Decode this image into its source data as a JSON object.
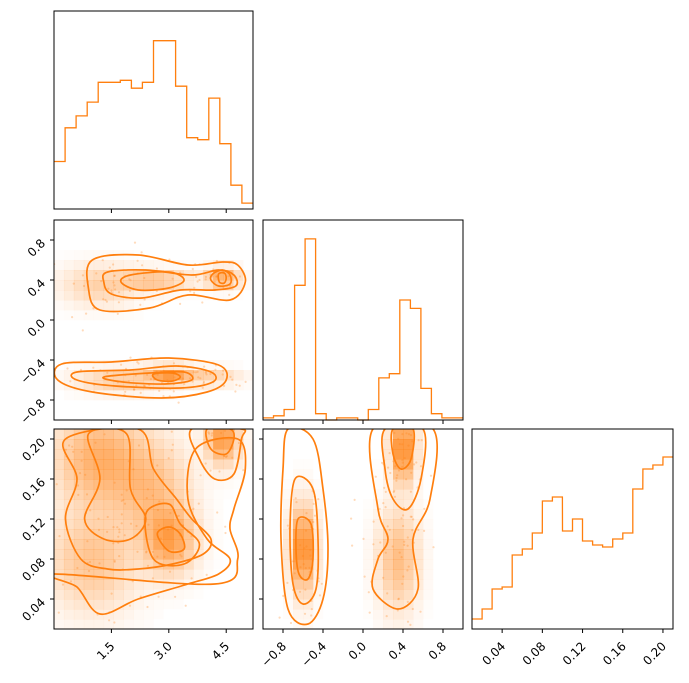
{
  "chart_data": {
    "type": "corner",
    "color": "#ff7f0e",
    "parameters": [
      {
        "range": [
          0,
          5.2
        ],
        "ticks": [
          1.5,
          3.0,
          4.5
        ],
        "tick_labels": [
          "1.5",
          "3.0",
          "4.5"
        ]
      },
      {
        "range": [
          -1.0,
          1.0
        ],
        "ticks": [
          -0.8,
          -0.4,
          0.0,
          0.4,
          0.8
        ],
        "tick_labels": [
          "−0.8",
          "−0.4",
          "0.0",
          "0.4",
          "0.8"
        ]
      },
      {
        "range": [
          0.01,
          0.21
        ],
        "ticks": [
          0.04,
          0.08,
          0.12,
          0.16,
          0.2
        ],
        "tick_labels": [
          "0.04",
          "0.08",
          "0.12",
          "0.16",
          "0.20"
        ]
      }
    ],
    "histograms": [
      {
        "param": 0,
        "ymax": 1.0,
        "counts": [
          0.24,
          0.41,
          0.47,
          0.54,
          0.64,
          0.64,
          0.65,
          0.61,
          0.64,
          0.85,
          0.85,
          0.62,
          0.36,
          0.35,
          0.56,
          0.33,
          0.12,
          0.03
        ]
      },
      {
        "param": 1,
        "ymax": 0.95,
        "counts": [
          0.01,
          0.02,
          0.05,
          0.64,
          0.86,
          0.03,
          0.0,
          0.01,
          0.01,
          0.0,
          0.05,
          0.2,
          0.22,
          0.57,
          0.53,
          0.15,
          0.03,
          0.01,
          0.01
        ]
      },
      {
        "param": 2,
        "ymax": 1.0,
        "counts": [
          0.05,
          0.1,
          0.2,
          0.21,
          0.37,
          0.4,
          0.48,
          0.64,
          0.66,
          0.49,
          0.55,
          0.44,
          0.42,
          0.41,
          0.45,
          0.48,
          0.7,
          0.8,
          0.82,
          0.86
        ]
      }
    ],
    "pairs": [
      {
        "x_param": 0,
        "y_param": 1,
        "blobs": [
          {
            "x": 2.6,
            "y": 0.4,
            "sx": 0.55,
            "sy": 0.06,
            "w": 0.6
          },
          {
            "x": 4.4,
            "y": 0.42,
            "sx": 0.25,
            "sy": 0.06,
            "w": 0.9
          },
          {
            "x": 1.2,
            "y": 0.35,
            "sx": 0.6,
            "sy": 0.12,
            "w": 0.35
          },
          {
            "x": 3.0,
            "y": -0.55,
            "sx": 0.35,
            "sy": 0.05,
            "w": 1.0
          },
          {
            "x": 1.8,
            "y": -0.6,
            "sx": 0.7,
            "sy": 0.07,
            "w": 0.45
          },
          {
            "x": 4.0,
            "y": -0.57,
            "sx": 0.5,
            "sy": 0.05,
            "w": 0.35
          }
        ],
        "contours": [
          {
            "level": 3,
            "points": [
              [
                1.0,
                0.6
              ],
              [
                2.2,
                0.65
              ],
              [
                3.5,
                0.55
              ],
              [
                4.4,
                0.58
              ],
              [
                4.8,
                0.55
              ],
              [
                5.0,
                0.38
              ],
              [
                4.6,
                0.2
              ],
              [
                3.5,
                0.25
              ],
              [
                2.5,
                0.12
              ],
              [
                1.2,
                0.1
              ],
              [
                0.9,
                0.32
              ]
            ]
          },
          {
            "level": 2,
            "points": [
              [
                1.4,
                0.48
              ],
              [
                2.4,
                0.5
              ],
              [
                3.6,
                0.45
              ],
              [
                4.3,
                0.5
              ],
              [
                4.7,
                0.45
              ],
              [
                4.75,
                0.34
              ],
              [
                4.2,
                0.3
              ],
              [
                3.3,
                0.3
              ],
              [
                2.3,
                0.22
              ],
              [
                1.5,
                0.26
              ],
              [
                1.3,
                0.38
              ]
            ]
          },
          {
            "level": 1,
            "points": [
              [
                2.0,
                0.45
              ],
              [
                3.0,
                0.48
              ],
              [
                3.4,
                0.4
              ],
              [
                3.0,
                0.32
              ],
              [
                2.2,
                0.3
              ],
              [
                1.75,
                0.38
              ]
            ]
          },
          {
            "level": 1,
            "points": [
              [
                4.15,
                0.46
              ],
              [
                4.4,
                0.5
              ],
              [
                4.6,
                0.45
              ],
              [
                4.6,
                0.36
              ],
              [
                4.3,
                0.34
              ],
              [
                4.1,
                0.4
              ]
            ]
          },
          {
            "level": 0,
            "points": [
              [
                4.3,
                0.46
              ],
              [
                4.45,
                0.47
              ],
              [
                4.5,
                0.42
              ],
              [
                4.45,
                0.37
              ],
              [
                4.32,
                0.38
              ]
            ]
          },
          {
            "level": 3,
            "points": [
              [
                0.2,
                -0.44
              ],
              [
                1.5,
                -0.42
              ],
              [
                3.0,
                -0.38
              ],
              [
                4.3,
                -0.45
              ],
              [
                4.5,
                -0.6
              ],
              [
                4.0,
                -0.72
              ],
              [
                2.8,
                -0.78
              ],
              [
                1.0,
                -0.72
              ],
              [
                0.1,
                -0.6
              ]
            ]
          },
          {
            "level": 2,
            "points": [
              [
                0.6,
                -0.52
              ],
              [
                2.0,
                -0.5
              ],
              [
                3.2,
                -0.46
              ],
              [
                4.1,
                -0.52
              ],
              [
                4.15,
                -0.62
              ],
              [
                3.3,
                -0.68
              ],
              [
                1.6,
                -0.66
              ],
              [
                0.6,
                -0.6
              ]
            ]
          },
          {
            "level": 1,
            "points": [
              [
                1.3,
                -0.57
              ],
              [
                2.5,
                -0.53
              ],
              [
                3.4,
                -0.52
              ],
              [
                3.6,
                -0.6
              ],
              [
                2.9,
                -0.64
              ],
              [
                1.8,
                -0.62
              ]
            ]
          },
          {
            "level": 0,
            "points": [
              [
                2.6,
                -0.54
              ],
              [
                3.1,
                -0.53
              ],
              [
                3.3,
                -0.57
              ],
              [
                3.1,
                -0.61
              ],
              [
                2.7,
                -0.6
              ]
            ]
          }
        ]
      },
      {
        "x_param": 0,
        "y_param": 2,
        "blobs": [
          {
            "x": 4.4,
            "y": 0.2,
            "sx": 0.25,
            "sy": 0.015,
            "w": 1.0
          },
          {
            "x": 3.0,
            "y": 0.1,
            "sx": 0.4,
            "sy": 0.02,
            "w": 0.9
          },
          {
            "x": 1.2,
            "y": 0.18,
            "sx": 0.7,
            "sy": 0.03,
            "w": 0.7
          },
          {
            "x": 1.0,
            "y": 0.08,
            "sx": 0.7,
            "sy": 0.03,
            "w": 0.45
          },
          {
            "x": 2.5,
            "y": 0.15,
            "sx": 0.6,
            "sy": 0.03,
            "w": 0.5
          }
        ],
        "contours": [
          {
            "level": 3,
            "points": [
              [
                0.0,
                0.065
              ],
              [
                0.6,
                0.052
              ],
              [
                1.2,
                0.025
              ],
              [
                2.2,
                0.04
              ],
              [
                3.5,
                0.055
              ],
              [
                4.3,
                0.065
              ],
              [
                4.6,
                0.08
              ],
              [
                4.0,
                0.1
              ],
              [
                3.5,
                0.14
              ],
              [
                3.7,
                0.19
              ],
              [
                4.8,
                0.2
              ],
              [
                5.0,
                0.17
              ],
              [
                4.7,
                0.13
              ],
              [
                4.6,
                0.11
              ],
              [
                4.8,
                0.08
              ],
              [
                4.2,
                0.055
              ]
            ]
          },
          {
            "level": 2,
            "points": [
              [
                0.3,
                0.2
              ],
              [
                0.6,
                0.16
              ],
              [
                0.3,
                0.12
              ],
              [
                0.7,
                0.08
              ],
              [
                1.4,
                0.07
              ],
              [
                2.2,
                0.07
              ],
              [
                3.1,
                0.075
              ],
              [
                3.9,
                0.085
              ],
              [
                4.1,
                0.1
              ],
              [
                3.6,
                0.12
              ],
              [
                3.2,
                0.14
              ],
              [
                2.6,
                0.17
              ],
              [
                2.2,
                0.21
              ]
            ]
          },
          {
            "level": 1,
            "points": [
              [
                0.9,
                0.205
              ],
              [
                1.2,
                0.16
              ],
              [
                0.8,
                0.12
              ],
              [
                1.3,
                0.1
              ],
              [
                2.0,
                0.1
              ],
              [
                2.4,
                0.12
              ],
              [
                2.0,
                0.15
              ],
              [
                1.9,
                0.205
              ]
            ]
          },
          {
            "level": 1,
            "points": [
              [
                2.4,
                0.125
              ],
              [
                2.6,
                0.08
              ],
              [
                3.4,
                0.075
              ],
              [
                3.8,
                0.095
              ],
              [
                3.3,
                0.115
              ],
              [
                3.0,
                0.135
              ]
            ]
          },
          {
            "level": 0,
            "points": [
              [
                2.7,
                0.105
              ],
              [
                3.0,
                0.088
              ],
              [
                3.4,
                0.09
              ],
              [
                3.3,
                0.105
              ],
              [
                3.0,
                0.112
              ]
            ]
          },
          {
            "level": 2,
            "points": [
              [
                3.6,
                0.21
              ],
              [
                3.8,
                0.18
              ],
              [
                4.2,
                0.16
              ],
              [
                4.7,
                0.165
              ],
              [
                4.9,
                0.2
              ],
              [
                4.9,
                0.21
              ]
            ]
          },
          {
            "level": 1,
            "points": [
              [
                4.0,
                0.21
              ],
              [
                4.1,
                0.19
              ],
              [
                4.5,
                0.185
              ],
              [
                4.7,
                0.2
              ],
              [
                4.6,
                0.21
              ]
            ]
          }
        ]
      },
      {
        "x_param": 1,
        "y_param": 2,
        "blobs": [
          {
            "x": -0.6,
            "y": 0.09,
            "sx": 0.07,
            "sy": 0.025,
            "w": 1.0
          },
          {
            "x": 0.4,
            "y": 0.19,
            "sx": 0.07,
            "sy": 0.02,
            "w": 1.0
          },
          {
            "x": 0.35,
            "y": 0.08,
            "sx": 0.12,
            "sy": 0.03,
            "w": 0.4
          }
        ],
        "contours": [
          {
            "level": 3,
            "points": [
              [
                -0.75,
                0.21
              ],
              [
                -0.5,
                0.2
              ],
              [
                -0.4,
                0.15
              ],
              [
                -0.35,
                0.09
              ],
              [
                -0.4,
                0.04
              ],
              [
                -0.55,
                0.015
              ],
              [
                -0.75,
                0.03
              ],
              [
                -0.82,
                0.1
              ],
              [
                -0.8,
                0.17
              ]
            ]
          },
          {
            "level": 2,
            "points": [
              [
                -0.68,
                0.16
              ],
              [
                -0.5,
                0.15
              ],
              [
                -0.45,
                0.1
              ],
              [
                -0.47,
                0.05
              ],
              [
                -0.6,
                0.035
              ],
              [
                -0.7,
                0.055
              ],
              [
                -0.73,
                0.11
              ]
            ]
          },
          {
            "level": 1,
            "points": [
              [
                -0.65,
                0.12
              ],
              [
                -0.52,
                0.115
              ],
              [
                -0.5,
                0.08
              ],
              [
                -0.55,
                0.06
              ],
              [
                -0.64,
                0.065
              ],
              [
                -0.67,
                0.09
              ]
            ]
          },
          {
            "level": 3,
            "points": [
              [
                0.1,
                0.21
              ],
              [
                0.7,
                0.21
              ],
              [
                0.67,
                0.14
              ],
              [
                0.5,
                0.1
              ],
              [
                0.55,
                0.05
              ],
              [
                0.35,
                0.03
              ],
              [
                0.1,
                0.05
              ],
              [
                0.15,
                0.08
              ],
              [
                0.25,
                0.1
              ],
              [
                0.15,
                0.13
              ]
            ]
          },
          {
            "level": 2,
            "points": [
              [
                0.22,
                0.21
              ],
              [
                0.6,
                0.21
              ],
              [
                0.58,
                0.16
              ],
              [
                0.45,
                0.13
              ],
              [
                0.3,
                0.14
              ],
              [
                0.22,
                0.17
              ]
            ]
          },
          {
            "level": 1,
            "points": [
              [
                0.3,
                0.21
              ],
              [
                0.5,
                0.21
              ],
              [
                0.48,
                0.18
              ],
              [
                0.38,
                0.17
              ],
              [
                0.3,
                0.185
              ]
            ]
          }
        ]
      }
    ]
  }
}
